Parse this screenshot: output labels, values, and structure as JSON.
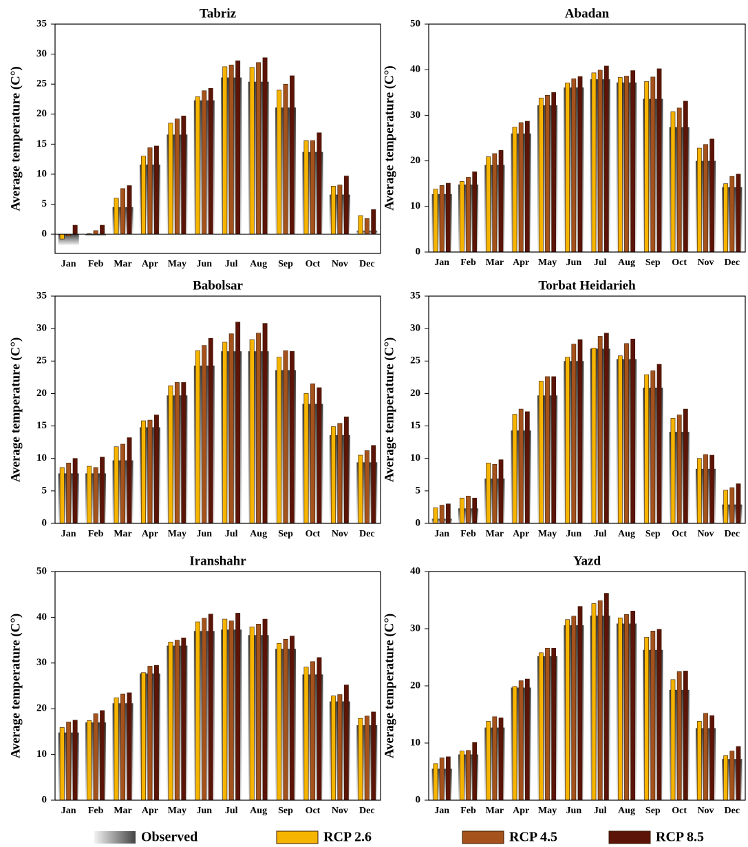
{
  "legend": {
    "position": "bottom",
    "series": [
      {
        "name": "Observed",
        "color": "#5a5a5a"
      },
      {
        "name": "RCP 2.6",
        "color": "#f5b400"
      },
      {
        "name": "RCP 4.5",
        "color": "#a5521c"
      },
      {
        "name": "RCP 8.5",
        "color": "#5c1408"
      }
    ]
  },
  "chart_data": [
    {
      "type": "bar",
      "title": "Tabriz",
      "y_label": "Average temperature (C°)",
      "categories": [
        "Jan",
        "Feb",
        "Mar",
        "Apr",
        "May",
        "Jun",
        "Jul",
        "Aug",
        "Sep",
        "Oct",
        "Nov",
        "Dec"
      ],
      "ylim": [
        -3.2,
        35
      ],
      "yticks": [
        0,
        5,
        10,
        15,
        20,
        25,
        30,
        35
      ],
      "zero_line": true,
      "series": [
        {
          "values": [
            -1.8,
            -0.3,
            4.5,
            11.6,
            16.6,
            22.3,
            26.1,
            25.4,
            21.1,
            13.7,
            6.6,
            0.6
          ]
        },
        {
          "values": [
            -0.8,
            0.1,
            6.0,
            13.0,
            18.5,
            22.9,
            27.9,
            27.8,
            24.0,
            15.6,
            8.0,
            3.1
          ]
        },
        {
          "values": [
            -0.3,
            0.6,
            7.6,
            14.4,
            19.2,
            23.9,
            28.2,
            28.6,
            25.0,
            15.6,
            8.2,
            2.6
          ]
        },
        {
          "values": [
            1.5,
            1.5,
            8.1,
            14.7,
            19.7,
            24.3,
            28.9,
            29.4,
            26.4,
            16.9,
            9.7,
            4.1
          ]
        }
      ]
    },
    {
      "type": "bar",
      "title": "Abadan",
      "y_label": "Average temperature (C°)",
      "categories": [
        "Jan",
        "Feb",
        "Mar",
        "Apr",
        "May",
        "Jun",
        "Jul",
        "Aug",
        "Sep",
        "Oct",
        "Nov",
        "Dec"
      ],
      "ylim": [
        0,
        50
      ],
      "yticks": [
        0,
        10,
        20,
        30,
        40,
        50
      ],
      "series": [
        {
          "values": [
            12.7,
            14.8,
            19.1,
            26.0,
            32.2,
            36.1,
            37.9,
            37.2,
            33.6,
            27.4,
            20.0,
            14.2
          ]
        },
        {
          "values": [
            13.8,
            15.5,
            20.9,
            27.4,
            33.8,
            37.1,
            39.3,
            38.3,
            37.4,
            30.8,
            22.8,
            15.0
          ]
        },
        {
          "values": [
            14.6,
            16.4,
            21.6,
            28.4,
            34.4,
            38.0,
            39.9,
            38.6,
            38.4,
            31.6,
            23.6,
            16.6
          ]
        },
        {
          "values": [
            15.1,
            17.6,
            22.3,
            28.7,
            35.0,
            38.5,
            40.8,
            39.8,
            40.2,
            33.1,
            24.8,
            17.1
          ]
        }
      ]
    },
    {
      "type": "bar",
      "title": "Babolsar",
      "y_label": "Average temperature (C°)",
      "categories": [
        "Jan",
        "Feb",
        "Mar",
        "Apr",
        "May",
        "Jun",
        "Jul",
        "Aug",
        "Sep",
        "Oct",
        "Nov",
        "Dec"
      ],
      "ylim": [
        0,
        35
      ],
      "yticks": [
        0,
        5,
        10,
        15,
        20,
        25,
        30,
        35
      ],
      "series": [
        {
          "values": [
            7.7,
            7.7,
            9.7,
            14.8,
            19.7,
            24.3,
            26.5,
            26.5,
            23.6,
            18.4,
            13.6,
            9.4
          ]
        },
        {
          "values": [
            8.6,
            8.8,
            11.8,
            15.8,
            21.2,
            26.6,
            27.9,
            28.3,
            25.6,
            20.0,
            14.9,
            10.5
          ]
        },
        {
          "values": [
            9.3,
            8.6,
            12.2,
            15.9,
            21.7,
            27.4,
            29.2,
            29.3,
            26.6,
            21.5,
            15.4,
            11.2
          ]
        },
        {
          "values": [
            10.0,
            10.2,
            13.2,
            16.7,
            21.7,
            28.5,
            31.0,
            30.8,
            26.5,
            20.9,
            16.4,
            12.0
          ]
        }
      ]
    },
    {
      "type": "bar",
      "title": "Torbat Heidarieh",
      "y_label": "Average temperature (C°)",
      "categories": [
        "Jan",
        "Feb",
        "Mar",
        "Apr",
        "May",
        "Jun",
        "Jul",
        "Aug",
        "Sep",
        "Oct",
        "Nov",
        "Dec"
      ],
      "ylim": [
        0,
        35
      ],
      "yticks": [
        0,
        5,
        10,
        15,
        20,
        25,
        30,
        35
      ],
      "series": [
        {
          "values": [
            0.7,
            2.3,
            6.9,
            14.3,
            19.7,
            25.0,
            26.9,
            25.3,
            20.9,
            14.1,
            8.4,
            2.9
          ]
        },
        {
          "values": [
            2.4,
            3.9,
            9.3,
            16.8,
            21.9,
            25.6,
            27.0,
            25.8,
            22.9,
            16.2,
            10.0,
            5.1
          ]
        },
        {
          "values": [
            2.8,
            4.2,
            9.1,
            17.6,
            22.6,
            27.6,
            28.8,
            27.7,
            23.5,
            16.7,
            10.6,
            5.5
          ]
        },
        {
          "values": [
            3.0,
            3.9,
            9.8,
            17.2,
            22.6,
            28.3,
            29.3,
            28.4,
            24.5,
            17.6,
            10.5,
            6.1
          ]
        }
      ]
    },
    {
      "type": "bar",
      "title": "Iranshahr",
      "y_label": "Average temperature (C°)",
      "categories": [
        "Jan",
        "Feb",
        "Mar",
        "Apr",
        "May",
        "Jun",
        "Jul",
        "Aug",
        "Sep",
        "Oct",
        "Nov",
        "Dec"
      ],
      "ylim": [
        0,
        50
      ],
      "yticks": [
        0,
        10,
        20,
        30,
        40,
        50
      ],
      "series": [
        {
          "values": [
            14.8,
            17.0,
            21.2,
            27.7,
            33.8,
            37.0,
            37.3,
            36.1,
            33.1,
            27.5,
            21.6,
            16.4
          ]
        },
        {
          "values": [
            15.9,
            17.4,
            22.4,
            27.9,
            34.6,
            39.0,
            39.6,
            37.9,
            34.3,
            29.1,
            22.8,
            17.9
          ]
        },
        {
          "values": [
            17.1,
            18.9,
            23.2,
            29.3,
            35.0,
            39.8,
            39.2,
            38.5,
            35.2,
            30.3,
            23.1,
            18.4
          ]
        },
        {
          "values": [
            17.5,
            19.6,
            23.5,
            29.5,
            35.5,
            40.7,
            40.9,
            39.6,
            35.9,
            31.2,
            25.2,
            19.3
          ]
        }
      ]
    },
    {
      "type": "bar",
      "title": "Yazd",
      "y_label": "Average temperature (C°)",
      "categories": [
        "Jan",
        "Feb",
        "Mar",
        "Apr",
        "May",
        "Jun",
        "Jul",
        "Aug",
        "Sep",
        "Oct",
        "Nov",
        "Dec"
      ],
      "ylim": [
        0,
        40
      ],
      "yticks": [
        0,
        10,
        20,
        30,
        40
      ],
      "series": [
        {
          "values": [
            5.5,
            8.0,
            12.7,
            19.7,
            25.2,
            30.6,
            32.3,
            30.9,
            26.3,
            19.3,
            12.6,
            7.2
          ]
        },
        {
          "values": [
            6.4,
            8.6,
            13.8,
            19.9,
            25.8,
            31.6,
            34.4,
            31.9,
            28.5,
            21.1,
            13.8,
            7.8
          ]
        },
        {
          "values": [
            7.4,
            8.7,
            14.6,
            20.9,
            26.6,
            32.2,
            34.9,
            32.5,
            29.6,
            22.5,
            15.2,
            8.6
          ]
        },
        {
          "values": [
            7.6,
            10.1,
            14.4,
            21.2,
            26.6,
            33.9,
            36.2,
            33.1,
            29.9,
            22.6,
            14.8,
            9.4
          ]
        }
      ]
    }
  ]
}
